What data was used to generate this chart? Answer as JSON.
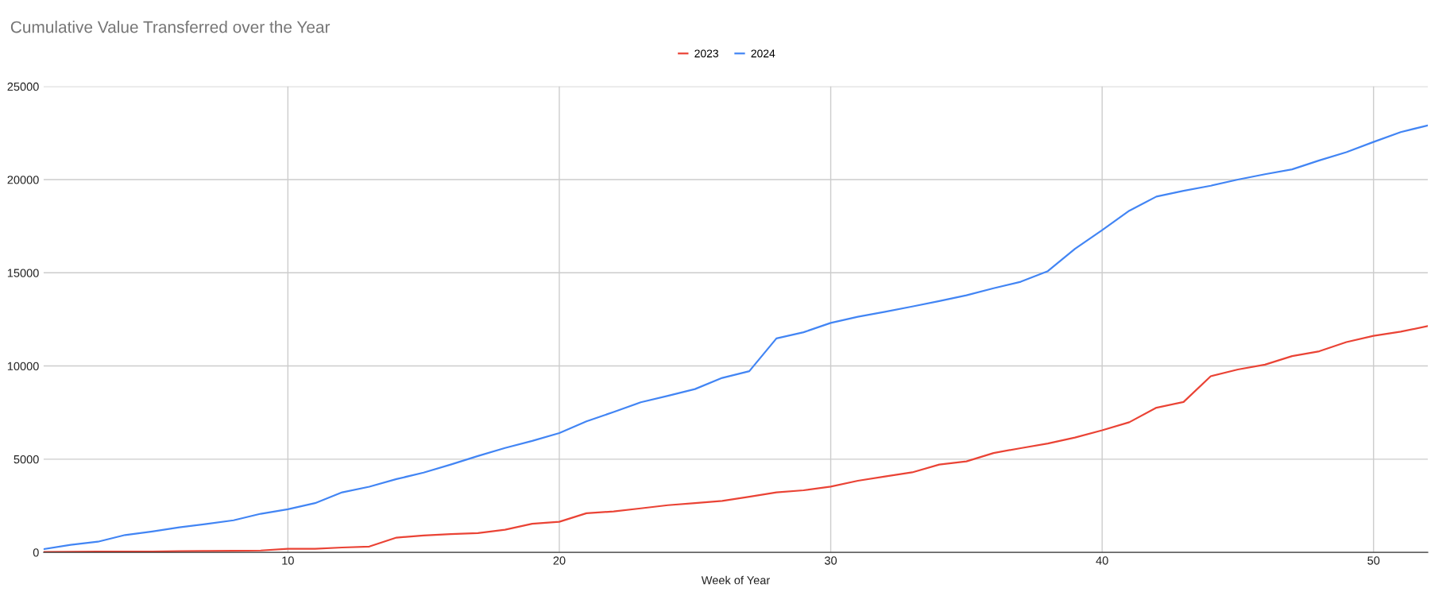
{
  "chart_data": {
    "type": "line",
    "title": "Cumulative Value Transferred over the Year",
    "xlabel": "Week of Year",
    "x": [
      1,
      2,
      3,
      4,
      5,
      6,
      7,
      8,
      9,
      10,
      11,
      12,
      13,
      14,
      15,
      16,
      17,
      18,
      19,
      20,
      21,
      22,
      23,
      24,
      25,
      26,
      27,
      28,
      29,
      30,
      31,
      32,
      33,
      34,
      35,
      36,
      37,
      38,
      39,
      40,
      41,
      42,
      43,
      44,
      45,
      46,
      47,
      48,
      49,
      50,
      51,
      52
    ],
    "series": [
      {
        "name": "2023",
        "color": "#ea4335",
        "values": [
          20,
          30,
          40,
          40,
          40,
          60,
          70,
          80,
          100,
          190,
          190,
          260,
          310,
          790,
          900,
          980,
          1030,
          1210,
          1530,
          1640,
          2100,
          2190,
          2360,
          2530,
          2640,
          2760,
          2980,
          3220,
          3330,
          3530,
          3840,
          4070,
          4290,
          4710,
          4880,
          5330,
          5590,
          5840,
          6160,
          6550,
          6980,
          7760,
          8070,
          9450,
          9810,
          10070,
          10530,
          10790,
          11280,
          11620,
          11840,
          12140
        ]
      },
      {
        "name": "2024",
        "color": "#4285f4",
        "values": [
          170,
          400,
          570,
          930,
          1120,
          1340,
          1520,
          1720,
          2070,
          2310,
          2640,
          3220,
          3520,
          3930,
          4280,
          4710,
          5170,
          5600,
          5980,
          6400,
          7030,
          7530,
          8050,
          8400,
          8760,
          9360,
          9720,
          11480,
          11810,
          12310,
          12640,
          12910,
          13190,
          13480,
          13790,
          14170,
          14520,
          15090,
          16290,
          17290,
          18330,
          19090,
          19400,
          19670,
          20000,
          20290,
          20550,
          21030,
          21470,
          22020,
          22550,
          22910
        ]
      }
    ],
    "xlim": [
      1,
      52
    ],
    "xticks": [
      10,
      20,
      30,
      40,
      50
    ],
    "ylim": [
      0,
      25000
    ],
    "yticks": [
      0,
      5000,
      10000,
      15000,
      20000,
      25000
    ],
    "grid": true,
    "legend": "top",
    "marker": "none",
    "line_style": "solid"
  }
}
